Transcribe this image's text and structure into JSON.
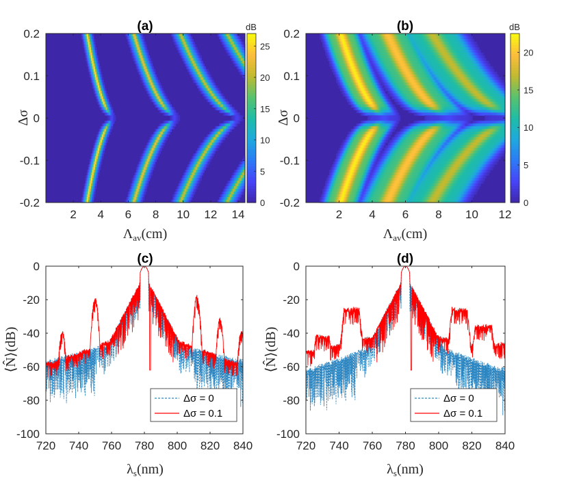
{
  "colors": {
    "colormap": [
      "#3e26a8",
      "#4743f8",
      "#2c7bf7",
      "#1ea9de",
      "#1ebda6",
      "#59c26e",
      "#c1ba2f",
      "#fdbd3c",
      "#f8fa0d"
    ],
    "series_blue": "#2e86c1",
    "series_red": "#ff0000",
    "axes": "#262626"
  },
  "chart_data": [
    {
      "type": "heatmap",
      "panel": "(a)",
      "title": "(a)",
      "xlabel": "Λav(cm)",
      "xlabel_main": "Λ",
      "xlabel_sub": "av",
      "xlabel_unit": "(cm)",
      "ylabel": "Δσ",
      "xlim": [
        0,
        14.5
      ],
      "ylim": [
        -0.2,
        0.2
      ],
      "xticks": [
        2,
        4,
        6,
        8,
        10,
        12,
        14
      ],
      "yticks": [
        -0.2,
        -0.1,
        0,
        0.1,
        0.2
      ],
      "colorbar": {
        "label": "dB",
        "range": [
          0,
          27
        ],
        "ticks": [
          0,
          5,
          10,
          15,
          20,
          25
        ]
      },
      "bands": [
        {
          "x_at_zero": 5.0,
          "x_at_edge": 3.0,
          "peak_db": 26,
          "width": 0.38
        },
        {
          "x_at_zero": 9.7,
          "x_at_edge": 6.4,
          "peak_db": 23,
          "width": 0.55
        },
        {
          "x_at_zero": 14.4,
          "x_at_edge": 9.8,
          "peak_db": 21,
          "width": 0.65
        },
        {
          "x_at_zero": 19.1,
          "x_at_edge": 13.2,
          "peak_db": 20,
          "width": 0.7
        }
      ]
    },
    {
      "type": "heatmap",
      "panel": "(b)",
      "title": "(b)",
      "xlabel": "Λav(cm)",
      "xlabel_main": "Λ",
      "xlabel_sub": "av",
      "xlabel_unit": "(cm)",
      "ylabel": "Δσ",
      "xlim": [
        0,
        12
      ],
      "ylim": [
        -0.2,
        0.2
      ],
      "xticks": [
        2,
        4,
        6,
        8,
        10,
        12
      ],
      "yticks": [
        -0.2,
        -0.1,
        0,
        0.1,
        0.2
      ],
      "colorbar": {
        "label": "dB",
        "range": [
          0,
          22.5
        ],
        "ticks": [
          0,
          5,
          10,
          15,
          20
        ]
      },
      "bands": [
        {
          "x_at_zero": 5.0,
          "x_at_edge": 2.1,
          "peak_db": 22,
          "width": 1.0
        },
        {
          "x_at_zero": 9.0,
          "x_at_edge": 4.9,
          "peak_db": 20,
          "width": 1.5
        },
        {
          "x_at_zero": 13.0,
          "x_at_edge": 7.6,
          "peak_db": 17,
          "width": 1.8
        }
      ]
    },
    {
      "type": "line",
      "panel": "(c)",
      "title": "(c)",
      "xlabel": "λs(nm)",
      "xlabel_main": "λ",
      "xlabel_sub": "s",
      "xlabel_unit": "(nm)",
      "ylabel": "⟨N̂⟩(dB)",
      "xlim": [
        720,
        840
      ],
      "ylim": [
        -100,
        0
      ],
      "xticks": [
        720,
        740,
        760,
        780,
        800,
        820,
        840
      ],
      "yticks": [
        -100,
        -80,
        -60,
        -40,
        -20,
        0
      ],
      "legend": {
        "position": "bottom-right",
        "entries": [
          "Δσ = 0",
          "Δσ = 0.1"
        ]
      },
      "center": 780,
      "sidebands": [
        {
          "x": 730,
          "peak": -38
        },
        {
          "x": 750,
          "peak": -18
        },
        {
          "x": 812,
          "peak": -17
        },
        {
          "x": 826,
          "peak": -31
        },
        {
          "x": 839,
          "peak": -38
        }
      ],
      "series": [
        {
          "name": "Δσ = 0",
          "style": "dashed",
          "floor_edge": -55,
          "floor_near": -42
        },
        {
          "name": "Δσ = 0.1",
          "style": "solid",
          "floor_edge": -57,
          "floor_near": -38
        }
      ]
    },
    {
      "type": "line",
      "panel": "(d)",
      "title": "(d)",
      "xlabel": "λs(nm)",
      "xlabel_main": "λ",
      "xlabel_sub": "s",
      "xlabel_unit": "(nm)",
      "ylabel": "⟨N̂⟩(dB)",
      "xlim": [
        720,
        840
      ],
      "ylim": [
        -100,
        0
      ],
      "xticks": [
        720,
        740,
        760,
        780,
        800,
        820,
        840
      ],
      "yticks": [
        -100,
        -80,
        -60,
        -40,
        -20,
        0
      ],
      "legend": {
        "position": "bottom-right",
        "entries": [
          "Δσ = 0",
          "Δσ = 0.1"
        ]
      },
      "center": 780,
      "plateaus": [
        {
          "x0": 726,
          "x1": 734,
          "level": -40
        },
        {
          "x0": 743,
          "x1": 752,
          "level": -24
        },
        {
          "x0": 808,
          "x1": 817,
          "level": -24
        },
        {
          "x0": 822,
          "x1": 832,
          "level": -34
        },
        {
          "x0": 833,
          "x1": 840,
          "level": -45
        }
      ],
      "series": [
        {
          "name": "Δσ = 0",
          "style": "dashed",
          "floor_edge": -60,
          "floor_near": -42
        },
        {
          "name": "Δσ = 0.1",
          "style": "solid",
          "floor_edge": -50,
          "floor_near": -38
        }
      ]
    }
  ]
}
